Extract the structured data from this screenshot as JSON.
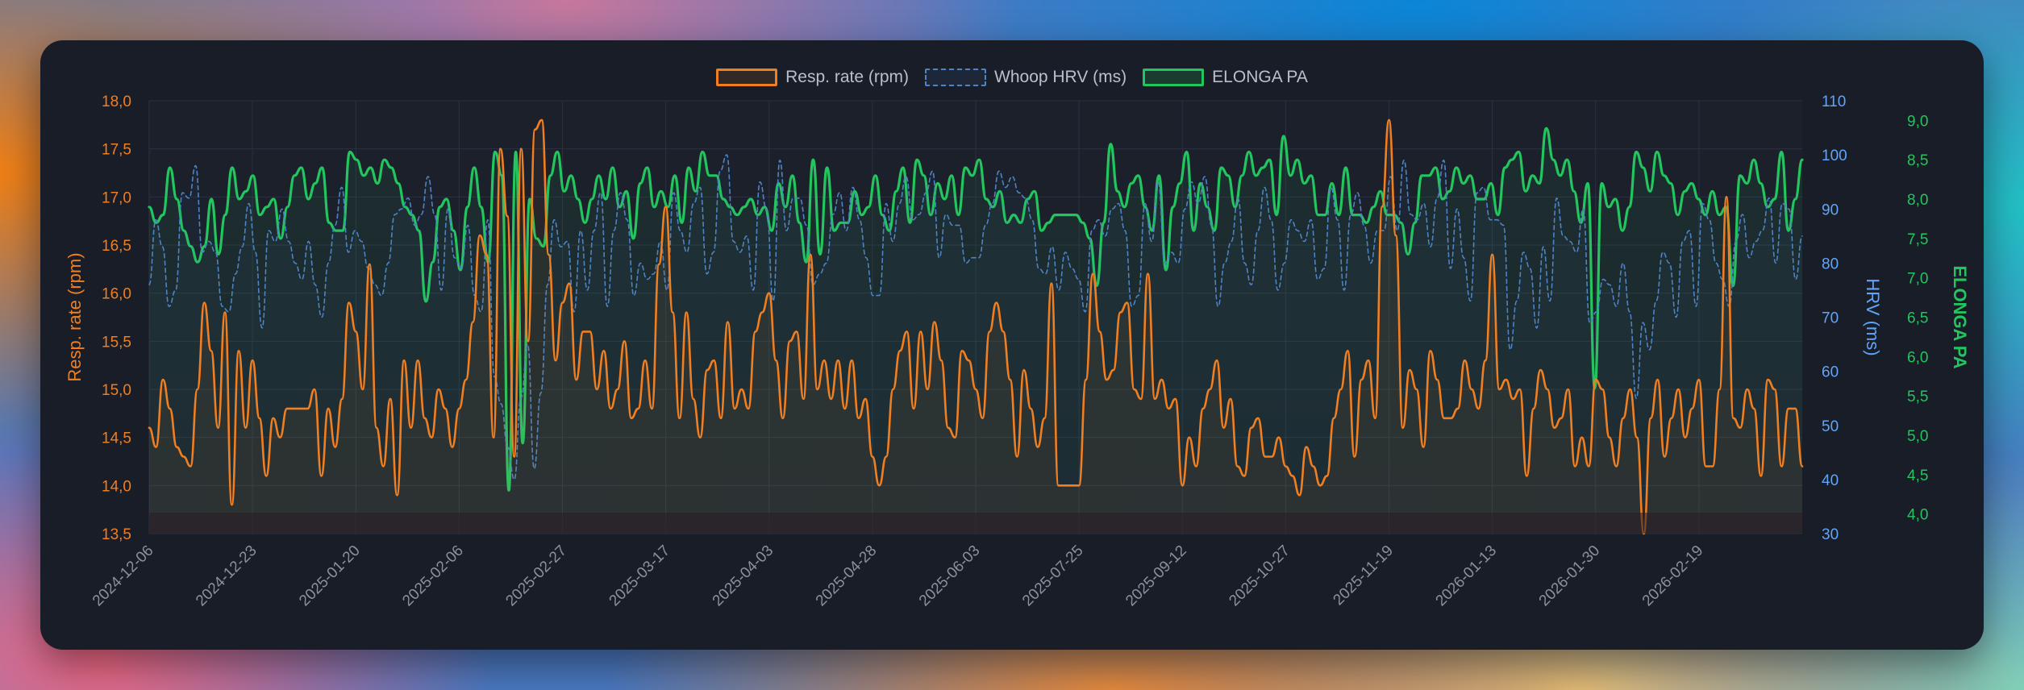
{
  "colors": {
    "rr": "#f07f21",
    "hrv": "#4e83c4",
    "pa": "#22c55e",
    "hrvAxis": "#60a5fa",
    "grid": "#2a3140",
    "tick": "#8b919c"
  },
  "chart_data": {
    "type": "line",
    "x_tick_labels": [
      "2024-12-06",
      "2024-12-23",
      "2025-01-20",
      "2025-02-06",
      "2025-02-27",
      "2025-03-17",
      "2025-04-03",
      "2025-04-28",
      "2025-06-03",
      "2025-07-25",
      "2025-09-12",
      "2025-10-27",
      "2025-11-19",
      "2026-01-13",
      "2026-01-30",
      "2026-02-19"
    ],
    "point_count": 240,
    "axes": {
      "rr": {
        "title": "Resp. rate (rpm)",
        "min": 13.5,
        "max": 18.0,
        "ticks": [
          "18,0",
          "17,5",
          "17,0",
          "16,5",
          "16,0",
          "15,5",
          "15,0",
          "14,5",
          "14,0",
          "13,5"
        ]
      },
      "hrv": {
        "title": "HRV (ms)",
        "min": 30,
        "max": 110,
        "ticks": [
          "110",
          "100",
          "90",
          "80",
          "70",
          "60",
          "50",
          "40",
          "30"
        ]
      },
      "pa": {
        "title": "ELONGA PA",
        "min": 3.75,
        "max": 9.25,
        "ticks": [
          "9,0",
          "8,5",
          "8,0",
          "7,5",
          "7,0",
          "6,5",
          "6,0",
          "5,5",
          "5,0",
          "4,5",
          "4,0"
        ]
      }
    },
    "series": [
      {
        "name": "Resp. rate (rpm)",
        "axis": "rr",
        "style": "solid",
        "values": [
          14.6,
          14.4,
          15.1,
          14.8,
          14.4,
          14.3,
          14.2,
          15.0,
          15.9,
          15.4,
          14.6,
          15.8,
          13.8,
          15.4,
          14.6,
          15.3,
          14.7,
          14.1,
          14.7,
          14.5,
          14.8,
          14.8,
          14.8,
          14.8,
          15.0,
          14.1,
          14.8,
          14.4,
          14.9,
          15.9,
          15.6,
          15.0,
          16.3,
          14.6,
          14.2,
          14.9,
          13.9,
          15.3,
          14.6,
          15.3,
          14.7,
          14.5,
          15.0,
          14.8,
          14.4,
          14.8,
          15.1,
          15.7,
          16.6,
          16.4,
          14.5,
          17.5,
          16.8,
          14.3,
          17.5,
          15.5,
          17.7,
          17.8,
          16.4,
          15.3,
          15.9,
          16.1,
          15.1,
          15.6,
          15.6,
          15.0,
          15.4,
          14.8,
          15.0,
          15.5,
          14.7,
          14.8,
          15.3,
          14.8,
          16.3,
          16.9,
          15.8,
          14.7,
          15.8,
          14.9,
          14.5,
          15.2,
          15.3,
          14.7,
          15.7,
          14.8,
          15.0,
          14.8,
          15.6,
          15.8,
          16.0,
          15.3,
          14.7,
          15.5,
          15.6,
          14.9,
          16.4,
          15.0,
          15.3,
          14.9,
          15.3,
          14.8,
          15.3,
          14.7,
          14.9,
          14.3,
          14.0,
          14.3,
          15.0,
          15.4,
          15.6,
          14.8,
          15.6,
          15.0,
          15.7,
          15.3,
          14.6,
          14.5,
          15.4,
          15.3,
          15.0,
          14.7,
          15.6,
          15.9,
          15.6,
          15.1,
          14.3,
          15.2,
          14.8,
          14.4,
          14.7,
          16.1,
          14.0,
          14.0,
          14.0,
          14.0,
          15.1,
          16.2,
          15.6,
          15.1,
          15.2,
          15.8,
          15.9,
          15.0,
          14.9,
          16.2,
          14.9,
          15.1,
          14.8,
          14.9,
          14.0,
          14.5,
          14.2,
          14.8,
          15.0,
          15.3,
          14.6,
          14.9,
          14.2,
          14.1,
          14.6,
          14.7,
          14.3,
          14.3,
          14.5,
          14.2,
          14.1,
          13.9,
          14.4,
          14.2,
          14.0,
          14.1,
          14.7,
          15.0,
          15.4,
          14.3,
          15.1,
          15.3,
          14.7,
          16.9,
          17.8,
          16.6,
          14.6,
          15.2,
          15.0,
          14.4,
          15.4,
          15.1,
          14.7,
          14.7,
          14.8,
          15.3,
          15.0,
          14.8,
          15.3,
          16.4,
          15.0,
          15.1,
          14.9,
          15.0,
          14.1,
          14.8,
          15.2,
          15.0,
          14.6,
          14.7,
          15.0,
          14.2,
          14.5,
          14.2,
          15.1,
          15.0,
          14.5,
          14.2,
          14.7,
          15.0,
          14.5,
          13.5,
          14.7,
          15.1,
          14.3,
          14.7,
          15.0,
          14.5,
          14.8,
          15.1,
          14.2,
          14.2,
          15.0,
          17.0,
          14.7,
          14.6,
          15.0,
          14.8,
          14.1,
          15.1,
          15.0,
          14.2,
          14.8,
          14.8,
          14.2
        ],
        "fill": true
      },
      {
        "name": "Whoop HRV (ms)",
        "axis": "hrv",
        "style": "dashed",
        "values": [
          76,
          88,
          83,
          72,
          75,
          93,
          92,
          98,
          82,
          84,
          82,
          72,
          71,
          78,
          83,
          91,
          82,
          68,
          86,
          84,
          90,
          84,
          80,
          77,
          84,
          76,
          70,
          80,
          87,
          94,
          82,
          86,
          84,
          79,
          76,
          74,
          80,
          89,
          90,
          92,
          87,
          89,
          96,
          89,
          75,
          90,
          81,
          79,
          87,
          74,
          71,
          88,
          59,
          54,
          46,
          40,
          55,
          65,
          42,
          56,
          76,
          88,
          83,
          84,
          71,
          86,
          75,
          86,
          93,
          72,
          86,
          93,
          88,
          74,
          80,
          77,
          78,
          84,
          75,
          93,
          86,
          82,
          91,
          94,
          78,
          82,
          97,
          100,
          84,
          82,
          85,
          75,
          95,
          90,
          73,
          99,
          86,
          92,
          92,
          87,
          76,
          78,
          80,
          89,
          93,
          86,
          94,
          88,
          81,
          74,
          74,
          91,
          84,
          91,
          96,
          88,
          89,
          93,
          97,
          81,
          89,
          87,
          87,
          80,
          81,
          81,
          87,
          91,
          97,
          94,
          96,
          93,
          92,
          88,
          79,
          78,
          83,
          75,
          82,
          79,
          77,
          71,
          86,
          88,
          85,
          90,
          91,
          86,
          72,
          74,
          91,
          84,
          95,
          80,
          82,
          80,
          90,
          95,
          91,
          96,
          87,
          72,
          80,
          84,
          92,
          80,
          76,
          86,
          94,
          88,
          75,
          80,
          88,
          86,
          84,
          88,
          77,
          79,
          94,
          88,
          75,
          89,
          93,
          87,
          80,
          86,
          86,
          96,
          86,
          99,
          89,
          88,
          91,
          83,
          92,
          99,
          79,
          90,
          81,
          73,
          93,
          94,
          88,
          88,
          87,
          64,
          73,
          82,
          79,
          68,
          83,
          73,
          92,
          85,
          84,
          82,
          90,
          69,
          71,
          77,
          76,
          72,
          80,
          71,
          55,
          69,
          64,
          73,
          82,
          80,
          70,
          84,
          86,
          72,
          91,
          88,
          80,
          77,
          72,
          84,
          89,
          81,
          84,
          86,
          92,
          80,
          91,
          90,
          77,
          85
        ],
        "fill": true
      },
      {
        "name": "ELONGA PA",
        "axis": "pa",
        "style": "solid",
        "values": [
          7.9,
          7.7,
          7.8,
          8.4,
          8.0,
          7.6,
          7.4,
          7.2,
          7.4,
          8.0,
          7.3,
          7.8,
          8.4,
          8.0,
          8.1,
          8.3,
          7.8,
          7.9,
          8.0,
          7.5,
          7.9,
          8.3,
          8.4,
          8.0,
          8.2,
          8.4,
          7.7,
          7.6,
          7.6,
          8.6,
          8.5,
          8.3,
          8.4,
          8.2,
          8.5,
          8.4,
          8.2,
          7.9,
          7.8,
          7.6,
          6.7,
          7.2,
          7.9,
          8.0,
          7.6,
          7.1,
          7.9,
          8.4,
          7.9,
          7.2,
          8.6,
          8.3,
          4.3,
          8.6,
          4.9,
          8.0,
          7.5,
          7.4,
          8.3,
          8.6,
          8.1,
          8.3,
          8.0,
          7.7,
          8.0,
          8.3,
          8.0,
          8.4,
          7.9,
          8.1,
          7.5,
          8.2,
          8.4,
          7.9,
          8.1,
          7.9,
          8.3,
          7.7,
          8.4,
          8.1,
          8.6,
          8.3,
          8.3,
          8.0,
          7.9,
          7.8,
          7.9,
          8.0,
          7.8,
          7.9,
          7.6,
          8.2,
          7.9,
          8.3,
          7.7,
          7.2,
          8.5,
          7.3,
          8.4,
          7.6,
          7.7,
          7.7,
          8.1,
          7.8,
          7.9,
          8.3,
          7.8,
          7.6,
          8.1,
          8.4,
          7.7,
          8.5,
          8.3,
          7.8,
          8.2,
          8.0,
          8.3,
          7.8,
          8.4,
          8.3,
          8.5,
          8.0,
          7.9,
          8.1,
          7.7,
          7.8,
          7.7,
          8.0,
          8.1,
          7.6,
          7.7,
          7.8,
          7.8,
          7.8,
          7.8,
          7.7,
          7.5,
          6.9,
          7.7,
          8.7,
          8.1,
          7.9,
          8.2,
          8.3,
          7.9,
          7.6,
          8.3,
          7.1,
          7.9,
          8.2,
          8.6,
          7.6,
          8.2,
          7.9,
          7.6,
          8.4,
          8.3,
          7.9,
          8.3,
          8.6,
          8.3,
          8.4,
          8.5,
          7.8,
          8.8,
          8.3,
          8.5,
          8.2,
          8.3,
          7.8,
          7.8,
          8.2,
          7.8,
          8.4,
          7.8,
          7.8,
          7.7,
          7.9,
          8.1,
          7.8,
          7.8,
          7.7,
          7.3,
          7.7,
          8.3,
          8.3,
          8.4,
          8.0,
          8.1,
          8.4,
          8.2,
          8.3,
          8.0,
          8.0,
          8.2,
          7.8,
          8.4,
          8.5,
          8.6,
          8.1,
          8.3,
          8.2,
          8.9,
          8.5,
          8.3,
          8.5,
          8.1,
          7.7,
          8.2,
          5.6,
          8.2,
          7.9,
          8.0,
          7.6,
          7.9,
          8.6,
          8.4,
          8.1,
          8.6,
          8.3,
          8.2,
          7.8,
          8.1,
          8.2,
          8.0,
          7.8,
          8.1,
          7.8,
          7.9,
          6.9,
          8.3,
          8.2,
          8.5,
          8.2,
          7.9,
          8.0,
          8.6,
          7.6,
          8.0,
          8.5
        ],
        "fill": true
      }
    ]
  },
  "legend": {
    "rr": "Resp. rate (rpm)",
    "hrv": "Whoop HRV (ms)",
    "pa": "ELONGA PA"
  }
}
